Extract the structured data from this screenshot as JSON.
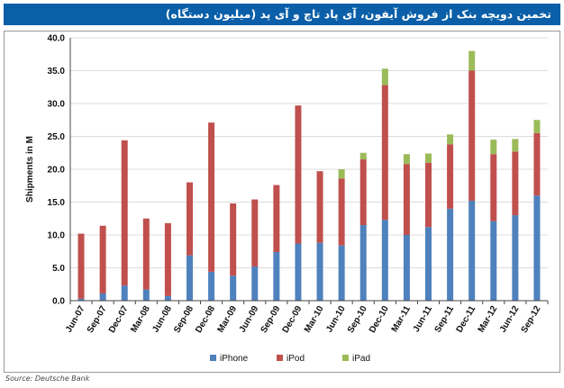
{
  "title": "تخمین دویچه بنک از فروش آیفون، آی پاد تاچ و آی پد (میلیون دستگاه)",
  "source": "Source: Deutsche Bank",
  "chart_data": {
    "type": "bar",
    "stacked": true,
    "title": "",
    "xlabel": "",
    "ylabel": "Shipments in M",
    "ylim": [
      0,
      40
    ],
    "yticks": [
      "0.0",
      "5.0",
      "10.0",
      "15.0",
      "20.0",
      "25.0",
      "30.0",
      "35.0",
      "40.0"
    ],
    "grid": true,
    "legend_position": "bottom",
    "categories": [
      "Jun-07",
      "Sep-07",
      "Dec-07",
      "Mar-08",
      "Jun-08",
      "Sep-08",
      "Dec-08",
      "Mar-09",
      "Jun-09",
      "Sep-09",
      "Dec-09",
      "Mar-10",
      "Jun-10",
      "Sep-10",
      "Dec-10",
      "Mar-11",
      "Jun-11",
      "Sep-11",
      "Dec-11",
      "Mar-12",
      "Jun-12",
      "Sep-12"
    ],
    "series": [
      {
        "name": "iPhone",
        "color": "#4f81bd",
        "values": [
          0.3,
          1.1,
          2.3,
          1.7,
          0.7,
          6.9,
          4.4,
          3.8,
          5.2,
          7.4,
          8.7,
          8.8,
          8.4,
          11.5,
          12.3,
          10.0,
          11.2,
          14.0,
          15.2,
          12.1,
          13.0,
          16.0
        ]
      },
      {
        "name": "iPod",
        "color": "#c0504d",
        "values": [
          9.9,
          10.3,
          22.1,
          10.8,
          11.1,
          11.1,
          22.7,
          11.0,
          10.2,
          10.2,
          21.0,
          10.9,
          10.2,
          10.0,
          20.5,
          10.8,
          9.8,
          9.8,
          19.8,
          10.2,
          9.7,
          9.5
        ]
      },
      {
        "name": "iPad",
        "color": "#9bbb59",
        "values": [
          0,
          0,
          0,
          0,
          0,
          0,
          0,
          0,
          0,
          0,
          0,
          0,
          1.4,
          1.0,
          2.5,
          1.5,
          1.4,
          1.5,
          3.0,
          2.2,
          1.9,
          2.0
        ]
      }
    ]
  }
}
